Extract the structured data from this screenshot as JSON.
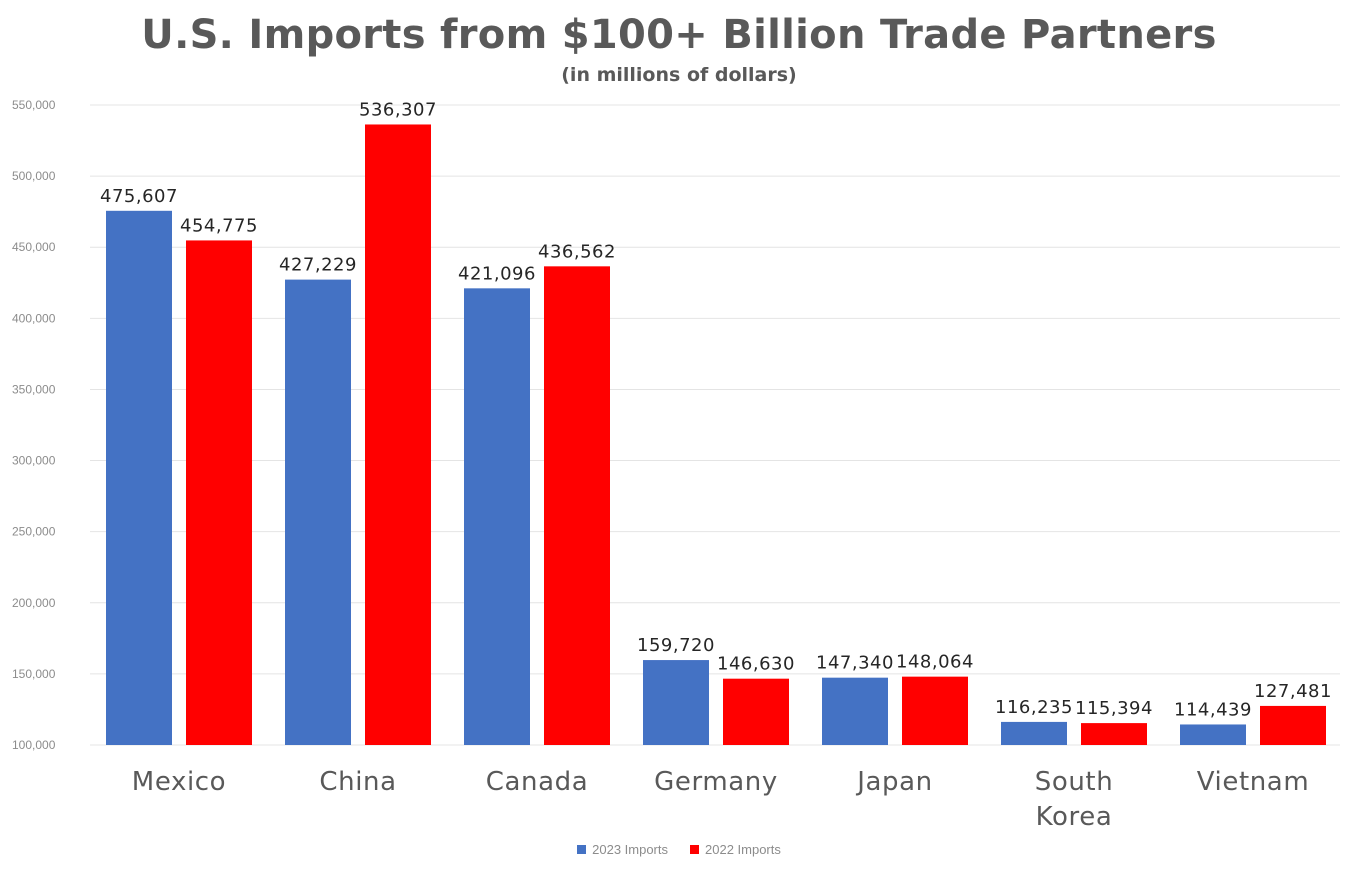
{
  "colors": {
    "series_2023": "#4472c4",
    "series_2022": "#ff0000",
    "grid": "#e4e4e4",
    "axis_text": "#8c8c8c",
    "category_text": "#595959",
    "label_text": "#262626"
  },
  "chart_data": {
    "type": "bar",
    "title": "U.S. Imports from $100+ Billion Trade Partners",
    "subtitle": "(in millions of dollars)",
    "categories": [
      "Mexico",
      "China",
      "Canada",
      "Germany",
      "Japan",
      "South Korea",
      "Vietnam"
    ],
    "category_lines": [
      [
        "Mexico"
      ],
      [
        "China"
      ],
      [
        "Canada"
      ],
      [
        "Germany"
      ],
      [
        "Japan"
      ],
      [
        "South",
        "Korea"
      ],
      [
        "Vietnam"
      ]
    ],
    "series": [
      {
        "name": "2023 Imports",
        "color": "#4472c4",
        "values": [
          475607,
          427229,
          421096,
          159720,
          147340,
          116235,
          114439
        ]
      },
      {
        "name": "2022 Imports",
        "color": "#ff0000",
        "values": [
          454775,
          536307,
          436562,
          146630,
          148064,
          115394,
          127481
        ]
      }
    ],
    "data_labels": [
      [
        "475,607",
        "427,229",
        "421,096",
        "159,720",
        "147,340",
        "116,235",
        "114,439"
      ],
      [
        "454,775",
        "536,307",
        "436,562",
        "146,630",
        "148,064",
        "115,394",
        "127,481"
      ]
    ],
    "ylim": [
      100000,
      550000
    ],
    "yticks": [
      100000,
      150000,
      200000,
      250000,
      300000,
      350000,
      400000,
      450000,
      500000,
      550000
    ],
    "ytick_labels": [
      "100,000",
      "150,000",
      "200,000",
      "250,000",
      "300,000",
      "350,000",
      "400,000",
      "450,000",
      "500,000",
      "550,000"
    ],
    "grid": true,
    "legend_position": "bottom",
    "xlabel": "",
    "ylabel": ""
  }
}
